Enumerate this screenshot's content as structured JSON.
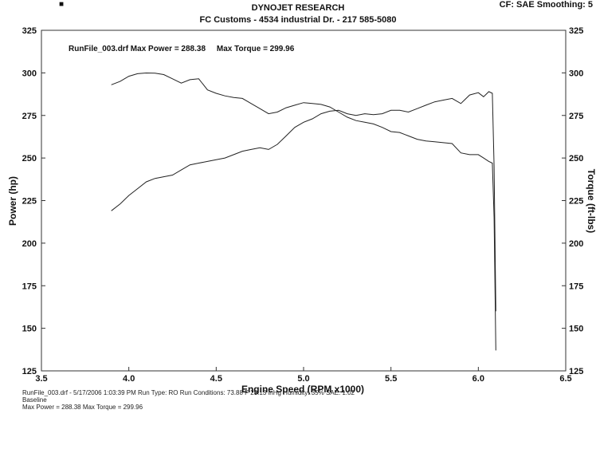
{
  "header": {
    "company": "DYNOJET RESEARCH",
    "shop_line": "FC Customs - 4534 industrial Dr. - 217 585-5080",
    "settings": "CF: SAE  Smoothing: 5"
  },
  "footer": {
    "run_info": "RunFile_003.drf - 5/17/2006 1:03:39 PM  Run Type: RO  Run Conditions: 73.88 F  29.13 inHg  Humidity: 35%  SAE: 1.02",
    "run_label": "Baseline",
    "max_line": "Max Power = 288.38  Max Torque = 299.96"
  },
  "chart_data": {
    "type": "line",
    "annotation": "RunFile_003.drf Max Power = 288.38     Max Torque = 299.96",
    "xlabel": "Engine Speed (RPM x1000)",
    "ylabel": "Power (hp)",
    "y2label": "Torque (ft-lbs)",
    "xlim": [
      3.5,
      6.5
    ],
    "ylim": [
      125,
      325
    ],
    "y2lim": [
      125,
      325
    ],
    "x_ticks": [
      "3.5",
      "4.0",
      "4.5",
      "5.0",
      "5.5",
      "6.0",
      "6.5"
    ],
    "y_ticks": [
      "125",
      "150",
      "175",
      "200",
      "225",
      "250",
      "275",
      "300",
      "325"
    ],
    "y2_ticks": [
      "125",
      "150",
      "175",
      "200",
      "225",
      "250",
      "275",
      "300",
      "325"
    ],
    "grid": false,
    "series": [
      {
        "role": "power",
        "color": "#222222",
        "x": [
          3.9,
          3.95,
          4.0,
          4.05,
          4.1,
          4.15,
          4.2,
          4.25,
          4.3,
          4.35,
          4.4,
          4.45,
          4.5,
          4.55,
          4.6,
          4.65,
          4.7,
          4.75,
          4.8,
          4.85,
          4.9,
          4.95,
          5.0,
          5.05,
          5.1,
          5.15,
          5.2,
          5.25,
          5.3,
          5.35,
          5.4,
          5.45,
          5.5,
          5.55,
          5.6,
          5.65,
          5.7,
          5.75,
          5.8,
          5.85,
          5.9,
          5.95,
          6.0,
          6.03,
          6.06,
          6.08,
          6.09,
          6.1
        ],
        "y": [
          219,
          223,
          228,
          232,
          236,
          238,
          239,
          240,
          243,
          246,
          247,
          248,
          249,
          250,
          252,
          254,
          255,
          256,
          255,
          258,
          263,
          268,
          271,
          273,
          276,
          277.5,
          278,
          276,
          275,
          276,
          275.5,
          276,
          278,
          278,
          277,
          279,
          281,
          283,
          284,
          285,
          282,
          287,
          288.38,
          286,
          289,
          288,
          245,
          160
        ]
      },
      {
        "role": "torque",
        "color": "#222222",
        "x": [
          3.9,
          3.95,
          4.0,
          4.05,
          4.1,
          4.15,
          4.2,
          4.25,
          4.3,
          4.35,
          4.4,
          4.45,
          4.5,
          4.55,
          4.6,
          4.65,
          4.7,
          4.75,
          4.8,
          4.85,
          4.9,
          4.95,
          5.0,
          5.05,
          5.1,
          5.15,
          5.2,
          5.25,
          5.3,
          5.35,
          5.4,
          5.45,
          5.5,
          5.55,
          5.6,
          5.65,
          5.7,
          5.75,
          5.8,
          5.85,
          5.9,
          5.95,
          6.0,
          6.03,
          6.06,
          6.08,
          6.09,
          6.1
        ],
        "y": [
          293,
          295,
          298,
          299.5,
          299.96,
          299.8,
          299,
          296.5,
          294,
          296,
          296.5,
          290,
          288,
          286.5,
          285.5,
          285,
          282,
          279,
          276,
          277,
          279.5,
          281,
          282.5,
          282,
          281.5,
          280,
          277,
          274,
          272,
          271,
          270,
          268,
          265.5,
          265,
          263,
          261,
          260,
          259.5,
          259,
          258.5,
          253,
          252,
          252,
          250,
          248,
          247,
          215,
          137
        ]
      }
    ]
  }
}
